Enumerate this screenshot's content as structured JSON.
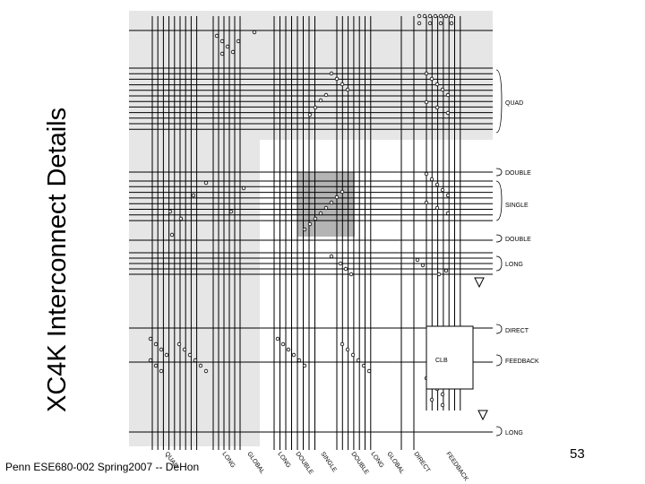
{
  "title": "XC4K Interconnect Details",
  "footer": "Penn ESE680-002 Spring2007 -- DeHon",
  "page_number": "53",
  "diagram": {
    "right_labels": [
      "QUAD",
      "DOUBLE",
      "SINGLE",
      "DOUBLE",
      "LONG",
      "DIRECT",
      "FEEDBACK",
      "LONG"
    ],
    "clb_label": "CLB",
    "bottom_labels": [
      "QUAD",
      "LONG",
      "GLOBAL",
      "LONG",
      "DOUBLE",
      "SINGLE",
      "DOUBLE",
      "LONG",
      "GLOBAL",
      "DIRECT",
      "FEEDBACK"
    ],
    "colors": {
      "shade": "#e6e6e6",
      "switch_box": "#b4b4b4",
      "lines": "#000000"
    }
  }
}
